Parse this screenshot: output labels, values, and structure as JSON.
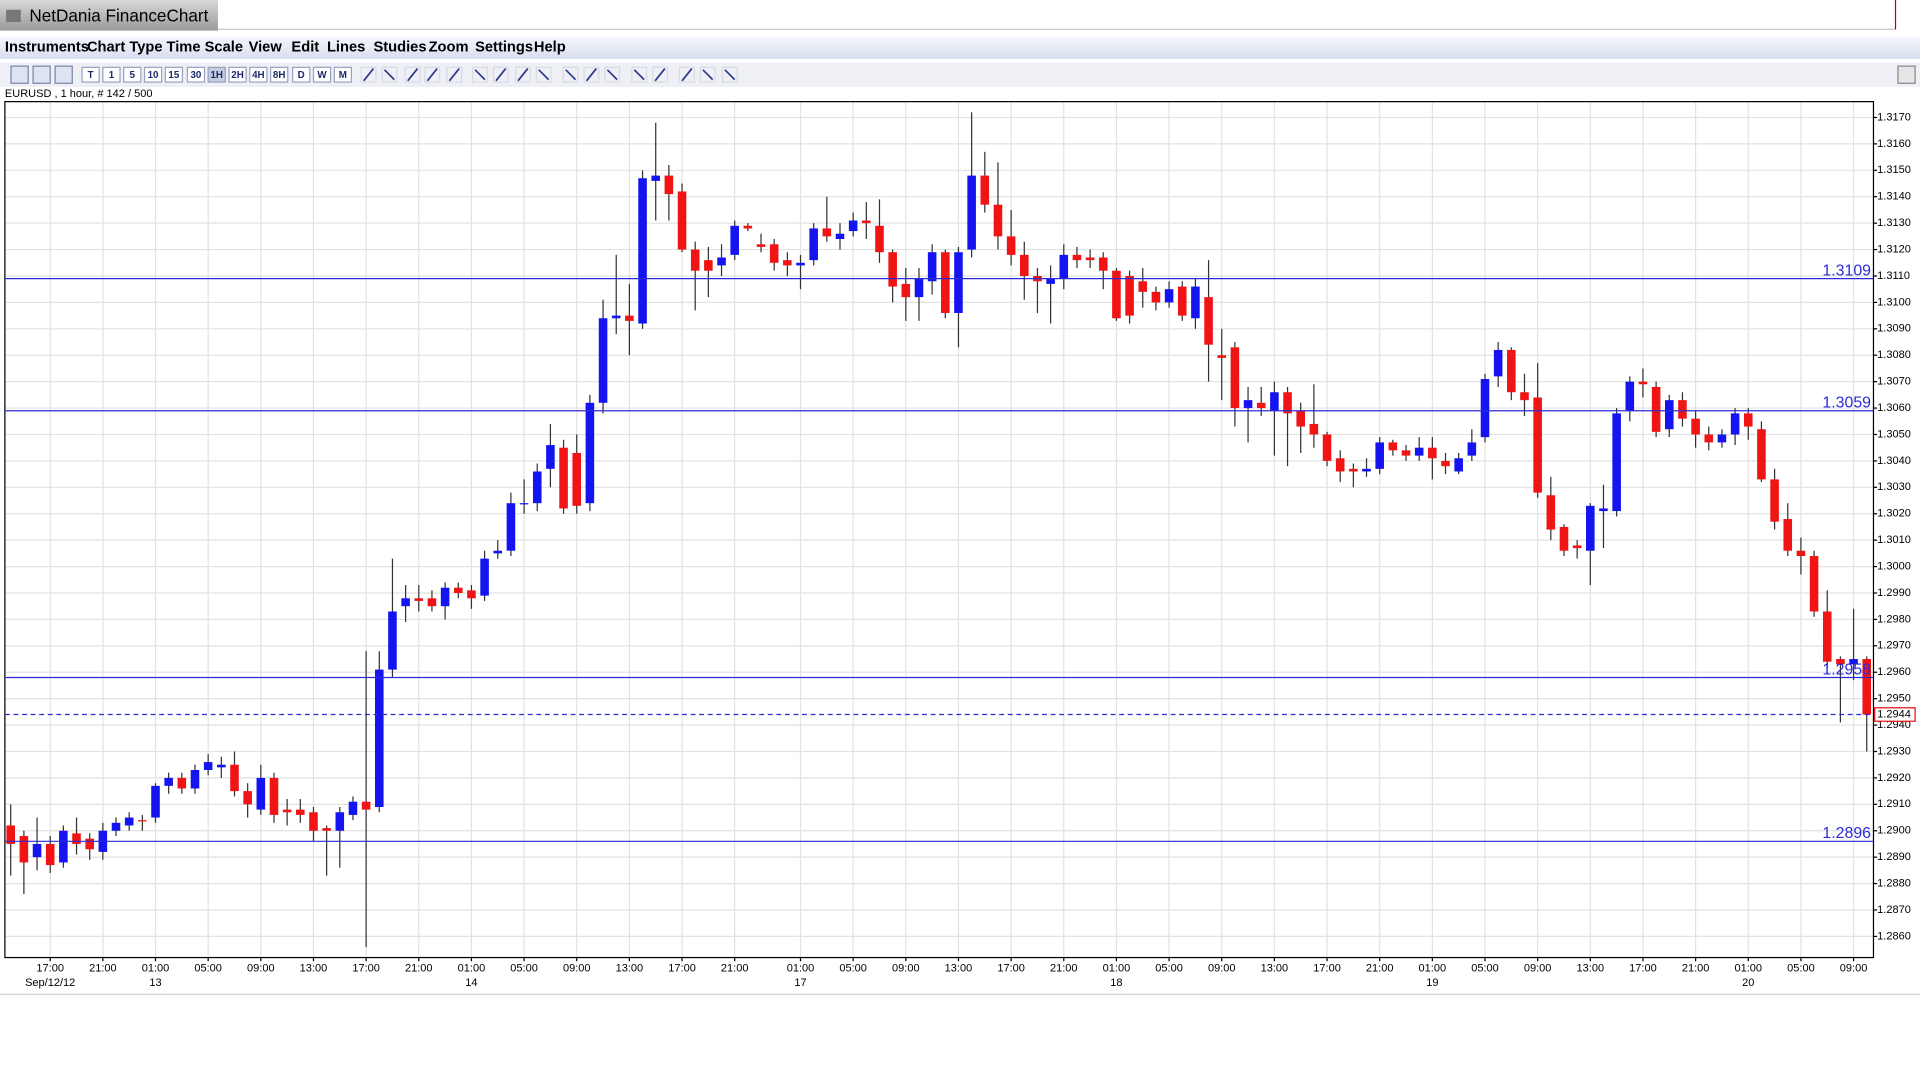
{
  "window": {
    "title": "NetDania FinanceChart"
  },
  "menu": [
    "Instruments",
    "Chart Type",
    "Time Scale",
    "View",
    "Edit",
    "Lines",
    "Studies",
    "Zoom",
    "Settings",
    "Help"
  ],
  "toolbar": [
    "T",
    "1",
    "5",
    "10",
    "15",
    "30",
    "1H",
    "2H",
    "4H",
    "8H",
    "D",
    "W",
    "M"
  ],
  "chart_data": {
    "type": "candlestick",
    "title": "EURUSD , 1 hour, # 142 / 500",
    "categories": [
      null,
      null,
      null,
      "17:00",
      null,
      null,
      null,
      "21:00",
      null,
      null,
      null,
      "01:00",
      null,
      null,
      null,
      "05:00",
      null,
      null,
      null,
      "09:00",
      null,
      null,
      null,
      "13:00",
      null,
      null,
      null,
      "17:00",
      null,
      null,
      null,
      "21:00",
      null,
      null,
      null,
      "01:00",
      null,
      null,
      null,
      "05:00",
      null,
      null,
      null,
      "09:00",
      null,
      null,
      null,
      "13:00",
      null,
      null,
      null,
      "17:00",
      null,
      null,
      null,
      "21:00",
      null,
      null,
      null,
      null,
      "01:00",
      null,
      null,
      null,
      "05:00",
      null,
      null,
      null,
      "09:00",
      null,
      null,
      null,
      "13:00",
      null,
      null,
      null,
      "17:00",
      null,
      null,
      null,
      "21:00",
      null,
      null,
      null,
      "01:00",
      null,
      null,
      null,
      "05:00",
      null,
      null,
      null,
      "09:00",
      null,
      null,
      null,
      "13:00",
      null,
      null,
      null,
      "17:00",
      null,
      null,
      null,
      "21:00",
      null,
      null,
      null,
      "01:00",
      null,
      null,
      null,
      "05:00",
      null,
      null,
      null,
      "09:00",
      null,
      null,
      null,
      "13:00",
      null,
      null,
      null,
      "17:00",
      null,
      null,
      null,
      "21:00",
      null,
      null,
      null,
      "01:00",
      null,
      null,
      null,
      "05:00",
      null,
      null,
      null,
      "09:00",
      null
    ],
    "dates": [
      null,
      null,
      null,
      "Sep/12/12",
      null,
      null,
      null,
      null,
      null,
      null,
      null,
      "13",
      null,
      null,
      null,
      null,
      null,
      null,
      null,
      null,
      null,
      null,
      null,
      null,
      null,
      null,
      null,
      null,
      null,
      null,
      null,
      null,
      null,
      null,
      null,
      "14",
      null,
      null,
      null,
      null,
      null,
      null,
      null,
      null,
      null,
      null,
      null,
      null,
      null,
      null,
      null,
      null,
      null,
      null,
      null,
      null,
      null,
      null,
      null,
      null,
      "17",
      null,
      null,
      null,
      null,
      null,
      null,
      null,
      null,
      null,
      null,
      null,
      null,
      null,
      null,
      null,
      null,
      null,
      null,
      null,
      null,
      null,
      null,
      null,
      "18",
      null,
      null,
      null,
      null,
      null,
      null,
      null,
      null,
      null,
      null,
      null,
      null,
      null,
      null,
      null,
      null,
      null,
      null,
      null,
      null,
      null,
      null,
      null,
      "19",
      null,
      null,
      null,
      null,
      null,
      null,
      null,
      null,
      null,
      null,
      null,
      null,
      null,
      null,
      null,
      null,
      null,
      null,
      null,
      null,
      null,
      null,
      null,
      "20",
      null,
      null,
      null,
      null,
      null,
      null,
      null,
      null,
      null
    ],
    "open": [
      1.2902,
      1.2898,
      1.289,
      1.2895,
      1.2888,
      1.2899,
      1.2897,
      1.2892,
      1.29,
      1.2902,
      1.2904,
      1.2905,
      1.2917,
      1.292,
      1.2916,
      1.2923,
      1.2924,
      1.2925,
      1.2915,
      1.2908,
      1.292,
      1.2908,
      1.2908,
      1.2907,
      1.2901,
      1.29,
      1.2906,
      1.2911,
      1.2909,
      1.2961,
      1.2985,
      1.2988,
      1.2988,
      1.2985,
      1.2992,
      1.2991,
      1.2989,
      1.3005,
      1.3006,
      1.3024,
      1.3024,
      1.3037,
      1.3045,
      1.3043,
      1.3024,
      1.3062,
      1.3094,
      1.3095,
      1.3092,
      1.3146,
      1.3148,
      1.3142,
      1.312,
      1.3116,
      1.3114,
      1.3118,
      1.3129,
      1.3122,
      1.3122,
      1.3116,
      1.3114,
      1.3116,
      1.3128,
      1.3124,
      1.3127,
      1.3131,
      1.3129,
      1.3119,
      1.3107,
      1.3102,
      1.3108,
      1.3119,
      1.3096,
      1.312,
      1.3148,
      1.3137,
      1.3125,
      1.3118,
      1.311,
      1.3107,
      1.3109,
      1.3118,
      1.3117,
      1.3117,
      1.3112,
      1.311,
      1.3108,
      1.3104,
      1.31,
      1.3106,
      1.3094,
      1.3102,
      1.308,
      1.3083,
      1.306,
      1.3062,
      1.3059,
      1.3066,
      1.3059,
      1.3054,
      1.305,
      1.3041,
      1.3037,
      1.3036,
      1.3037,
      1.3047,
      1.3044,
      1.3042,
      1.3045,
      1.304,
      1.3036,
      1.3042,
      1.3049,
      1.3072,
      1.3082,
      1.3066,
      1.3064,
      1.3027,
      1.3015,
      1.3008,
      1.3006,
      1.3021,
      1.3021,
      1.3059,
      1.307,
      1.3068,
      1.3052,
      1.3063,
      1.3056,
      1.305,
      1.3047,
      1.305,
      1.3058,
      1.3052,
      1.3033,
      1.3018,
      1.3006,
      1.3004,
      1.2983,
      1.2965,
      1.2963,
      1.2965
    ],
    "high": [
      1.291,
      1.29,
      1.2905,
      1.2898,
      1.2902,
      1.2905,
      1.2899,
      1.2903,
      1.2905,
      1.2907,
      1.2906,
      1.2918,
      1.2922,
      1.2922,
      1.2925,
      1.2929,
      1.2928,
      1.293,
      1.2918,
      1.2925,
      1.2922,
      1.2912,
      1.2912,
      1.2909,
      1.2902,
      1.2909,
      1.2913,
      1.2968,
      1.2968,
      1.3003,
      1.2993,
      1.2993,
      1.2991,
      1.2994,
      1.2994,
      1.2993,
      1.3006,
      1.301,
      1.3028,
      1.3033,
      1.3039,
      1.3054,
      1.3048,
      1.305,
      1.3065,
      1.3101,
      1.3118,
      1.3107,
      1.315,
      1.3168,
      1.3152,
      1.3145,
      1.3123,
      1.3121,
      1.3122,
      1.3131,
      1.313,
      1.3126,
      1.3124,
      1.3119,
      1.3118,
      1.313,
      1.314,
      1.313,
      1.3134,
      1.3138,
      1.3139,
      1.312,
      1.3113,
      1.3113,
      1.3122,
      1.312,
      1.3121,
      1.3172,
      1.3157,
      1.3153,
      1.3135,
      1.3123,
      1.3113,
      1.3114,
      1.3122,
      1.3121,
      1.312,
      1.3119,
      1.3113,
      1.3112,
      1.3113,
      1.3106,
      1.3108,
      1.3108,
      1.3109,
      1.3116,
      1.309,
      1.3085,
      1.3068,
      1.3068,
      1.307,
      1.3068,
      1.3062,
      1.3069,
      1.3051,
      1.3044,
      1.3039,
      1.3041,
      1.3049,
      1.3048,
      1.3046,
      1.3049,
      1.3049,
      1.3043,
      1.3043,
      1.3052,
      1.3073,
      1.3085,
      1.3083,
      1.3073,
      1.3077,
      1.3034,
      1.3016,
      1.301,
      1.3024,
      1.3031,
      1.306,
      1.3072,
      1.3075,
      1.307,
      1.3065,
      1.3066,
      1.3059,
      1.3053,
      1.3052,
      1.306,
      1.306,
      1.3055,
      1.3037,
      1.3024,
      1.3011,
      1.3006,
      1.2991,
      1.2966,
      1.2984,
      1.2966
    ],
    "low": [
      1.2883,
      1.2876,
      1.2885,
      1.2884,
      1.2886,
      1.2891,
      1.2889,
      1.2889,
      1.2898,
      1.29,
      1.29,
      1.2903,
      1.2914,
      1.2914,
      1.2914,
      1.2921,
      1.292,
      1.2913,
      1.2905,
      1.2906,
      1.2903,
      1.2902,
      1.2903,
      1.2896,
      1.2883,
      1.2886,
      1.2904,
      1.2856,
      1.2907,
      1.2958,
      1.2979,
      1.2983,
      1.2983,
      1.298,
      1.2988,
      1.2984,
      1.2987,
      1.3003,
      1.3004,
      1.302,
      1.3021,
      1.303,
      1.302,
      1.302,
      1.3021,
      1.3058,
      1.3088,
      1.308,
      1.309,
      1.3131,
      1.3131,
      1.3119,
      1.3097,
      1.3102,
      1.311,
      1.3116,
      1.3127,
      1.3119,
      1.3112,
      1.311,
      1.3105,
      1.3114,
      1.3123,
      1.312,
      1.3125,
      1.3124,
      1.3115,
      1.31,
      1.3093,
      1.3093,
      1.3103,
      1.3094,
      1.3083,
      1.3117,
      1.3134,
      1.312,
      1.3114,
      1.3101,
      1.3096,
      1.3092,
      1.3105,
      1.3113,
      1.3113,
      1.3105,
      1.3093,
      1.3092,
      1.3098,
      1.3097,
      1.3098,
      1.3093,
      1.309,
      1.307,
      1.3063,
      1.3053,
      1.3047,
      1.3057,
      1.3042,
      1.3038,
      1.3043,
      1.3045,
      1.3038,
      1.3032,
      1.303,
      1.3034,
      1.3035,
      1.3042,
      1.304,
      1.304,
      1.3033,
      1.3035,
      1.3035,
      1.304,
      1.3047,
      1.3068,
      1.3063,
      1.3057,
      1.3026,
      1.301,
      1.3004,
      1.3003,
      1.2993,
      1.3007,
      1.3019,
      1.3055,
      1.3064,
      1.3049,
      1.3049,
      1.3053,
      1.3045,
      1.3044,
      1.3045,
      1.3046,
      1.3048,
      1.3032,
      1.3014,
      1.3004,
      1.2997,
      1.2981,
      1.2962,
      1.2941,
      1.2957,
      1.293
    ],
    "close": [
      1.2895,
      1.2888,
      1.2895,
      1.2887,
      1.29,
      1.2895,
      1.2893,
      1.29,
      1.2903,
      1.2905,
      1.2904,
      1.2917,
      1.292,
      1.2916,
      1.2923,
      1.2926,
      1.2925,
      1.2915,
      1.291,
      1.292,
      1.2906,
      1.2907,
      1.2906,
      1.29,
      1.29,
      1.2907,
      1.2911,
      1.2908,
      1.2961,
      1.2983,
      1.2988,
      1.2987,
      1.2985,
      1.2992,
      1.299,
      1.2988,
      1.3003,
      1.3006,
      1.3024,
      1.3024,
      1.3036,
      1.3046,
      1.3022,
      1.3023,
      1.3062,
      1.3094,
      1.3095,
      1.3093,
      1.3147,
      1.3148,
      1.3141,
      1.312,
      1.3112,
      1.3112,
      1.3117,
      1.3129,
      1.3128,
      1.3121,
      1.3115,
      1.3114,
      1.3115,
      1.3128,
      1.3125,
      1.3126,
      1.3131,
      1.313,
      1.3119,
      1.3106,
      1.3102,
      1.3109,
      1.3119,
      1.3096,
      1.3119,
      1.3148,
      1.3137,
      1.3125,
      1.3118,
      1.311,
      1.3108,
      1.3109,
      1.3118,
      1.3116,
      1.3116,
      1.3112,
      1.3094,
      1.3095,
      1.3104,
      1.31,
      1.3105,
      1.3095,
      1.3106,
      1.3084,
      1.3079,
      1.306,
      1.3063,
      1.306,
      1.3066,
      1.3058,
      1.3053,
      1.305,
      1.304,
      1.3036,
      1.3036,
      1.3037,
      1.3047,
      1.3044,
      1.3042,
      1.3045,
      1.3041,
      1.3038,
      1.3041,
      1.3047,
      1.3071,
      1.3082,
      1.3066,
      1.3063,
      1.3028,
      1.3014,
      1.3006,
      1.3007,
      1.3023,
      1.3022,
      1.3058,
      1.307,
      1.3069,
      1.3051,
      1.3063,
      1.3056,
      1.305,
      1.3047,
      1.305,
      1.3058,
      1.3053,
      1.3033,
      1.3017,
      1.3006,
      1.3004,
      1.2983,
      1.2964,
      1.2963,
      1.2965,
      1.2944
    ],
    "up_color": "#1414f0",
    "down_color": "#f01414",
    "wick_color": "#333333",
    "ylim": [
      1.2852,
      1.3176
    ],
    "yticks": [
      {
        "value": 1.286,
        "label": "1.2860"
      },
      {
        "value": 1.287,
        "label": "1.2870"
      },
      {
        "value": 1.288,
        "label": "1.2880"
      },
      {
        "value": 1.289,
        "label": "1.2890"
      },
      {
        "value": 1.29,
        "label": "1.2900"
      },
      {
        "value": 1.291,
        "label": "1.2910"
      },
      {
        "value": 1.292,
        "label": "1.2920"
      },
      {
        "value": 1.293,
        "label": "1.2930"
      },
      {
        "value": 1.294,
        "label": "1.2940"
      },
      {
        "value": 1.295,
        "label": "1.2950"
      },
      {
        "value": 1.296,
        "label": "1.2960"
      },
      {
        "value": 1.297,
        "label": "1.2970"
      },
      {
        "value": 1.298,
        "label": "1.2980"
      },
      {
        "value": 1.299,
        "label": "1.2990"
      },
      {
        "value": 1.3,
        "label": "1.3000"
      },
      {
        "value": 1.301,
        "label": "1.3010"
      },
      {
        "value": 1.302,
        "label": "1.3020"
      },
      {
        "value": 1.303,
        "label": "1.3030"
      },
      {
        "value": 1.304,
        "label": "1.3040"
      },
      {
        "value": 1.305,
        "label": "1.3050"
      },
      {
        "value": 1.306,
        "label": "1.3060"
      },
      {
        "value": 1.307,
        "label": "1.3070"
      },
      {
        "value": 1.308,
        "label": "1.3080"
      },
      {
        "value": 1.309,
        "label": "1.3090"
      },
      {
        "value": 1.31,
        "label": "1.3100"
      },
      {
        "value": 1.311,
        "label": "1.3110"
      },
      {
        "value": 1.312,
        "label": "1.3120"
      },
      {
        "value": 1.313,
        "label": "1.3130"
      },
      {
        "value": 1.314,
        "label": "1.3140"
      },
      {
        "value": 1.315,
        "label": "1.3150"
      },
      {
        "value": 1.316,
        "label": "1.3160"
      },
      {
        "value": 1.317,
        "label": "1.3170"
      }
    ],
    "grid": true,
    "levels": [
      1.3109,
      1.3059,
      1.2958,
      1.2896
    ],
    "level_color": "#2b2bd6",
    "last": 1.2944,
    "last_color": "#e01010"
  }
}
